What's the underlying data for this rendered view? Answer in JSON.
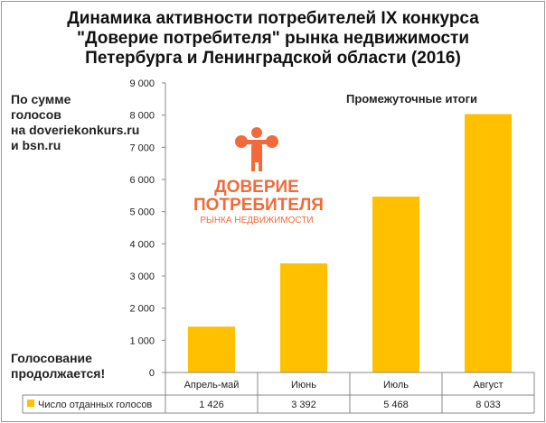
{
  "chart_data": {
    "type": "bar",
    "title": [
      "Динамика активности потребителей IX конкурса",
      "\"Доверие потребителя\" рынка недвижимости",
      "Петербурга и Ленинградской области (2016)"
    ],
    "categories": [
      "Апрель-май",
      "Июнь",
      "Июль",
      "Август"
    ],
    "series": [
      {
        "name": "Число отданных голосов",
        "values": [
          1426,
          3392,
          5468,
          8033
        ],
        "labels": [
          "1 426",
          "3 392",
          "5 468",
          "8 033"
        ],
        "color": "#ffc000"
      }
    ],
    "ylim": [
      0,
      9000
    ],
    "yticks": [
      0,
      1000,
      2000,
      3000,
      4000,
      5000,
      6000,
      7000,
      8000,
      9000
    ],
    "ytick_labels": [
      "0",
      "1 000",
      "2 000",
      "3 000",
      "4 000",
      "5 000",
      "6 000",
      "7 000",
      "8 000",
      "9 000"
    ],
    "annotation": "Промежуточные итоги",
    "legend": "bottom data table"
  },
  "side_note": [
    "По сумме",
    "голосов",
    "на doveriekonkurs.ru",
    "и bsn.ru"
  ],
  "footer_note": [
    "Голосование",
    "продолжается!"
  ],
  "logo": {
    "line1": "ДОВЕРИЕ",
    "line2": "ПОТРЕБИТЕЛЯ",
    "line3": "РЫНКА НЕДВИЖИМОСТИ",
    "color": "#f26a3a"
  }
}
